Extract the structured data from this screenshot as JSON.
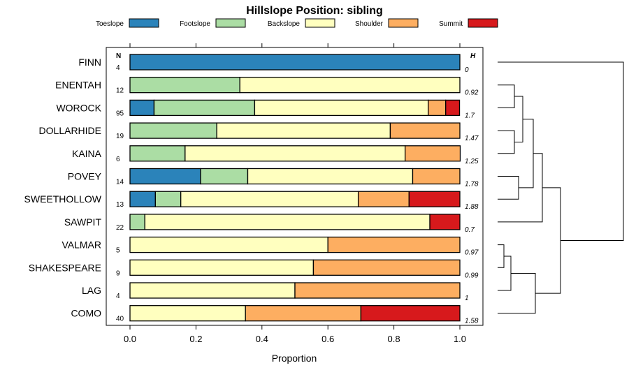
{
  "chart_data": {
    "type": "bar",
    "orientation": "horizontal",
    "stacked": true,
    "title": "Hillslope Position: sibling",
    "xlabel": "Proportion",
    "ylabel": "",
    "xlim": [
      0,
      1
    ],
    "x_ticks": [
      "0.0",
      "0.2",
      "0.4",
      "0.6",
      "0.8",
      "1.0"
    ],
    "n_header": "N",
    "h_header": "H",
    "categories": [
      "FINN",
      "ENENTAH",
      "WOROCK",
      "DOLLARHIDE",
      "KAINA",
      "POVEY",
      "SWEETHOLLOW",
      "SAWPIT",
      "VALMAR",
      "SHAKESPEARE",
      "LAG",
      "COMO"
    ],
    "n": [
      "4",
      "12",
      "95",
      "19",
      "6",
      "14",
      "13",
      "22",
      "5",
      "9",
      "4",
      "40"
    ],
    "h": [
      "0",
      "0.92",
      "1.7",
      "1.47",
      "1.25",
      "1.78",
      "1.88",
      "0.7",
      "0.97",
      "0.99",
      "1",
      "1.58"
    ],
    "series": [
      {
        "name": "Toeslope",
        "color": "#2b83ba",
        "values": [
          1.0,
          0,
          0.073,
          0,
          0,
          0.214,
          0.077,
          0,
          0,
          0,
          0,
          0
        ]
      },
      {
        "name": "Footslope",
        "color": "#abdda4",
        "values": [
          0,
          0.333,
          0.305,
          0.263,
          0.167,
          0.143,
          0.077,
          0.045,
          0,
          0,
          0,
          0
        ]
      },
      {
        "name": "Backslope",
        "color": "#ffffbf",
        "values": [
          0,
          0.667,
          0.526,
          0.526,
          0.667,
          0.5,
          0.538,
          0.864,
          0.6,
          0.556,
          0.5,
          0.35
        ]
      },
      {
        "name": "Shoulder",
        "color": "#fdae61",
        "values": [
          0,
          0,
          0.053,
          0.211,
          0.167,
          0.143,
          0.154,
          0,
          0.4,
          0.444,
          0.5,
          0.35
        ]
      },
      {
        "name": "Summit",
        "color": "#d7191c",
        "values": [
          0,
          0,
          0.042,
          0,
          0,
          0,
          0.154,
          0.091,
          0,
          0,
          0,
          0.3
        ]
      }
    ],
    "grid": false,
    "legend": "top",
    "dendrogram": "right"
  }
}
